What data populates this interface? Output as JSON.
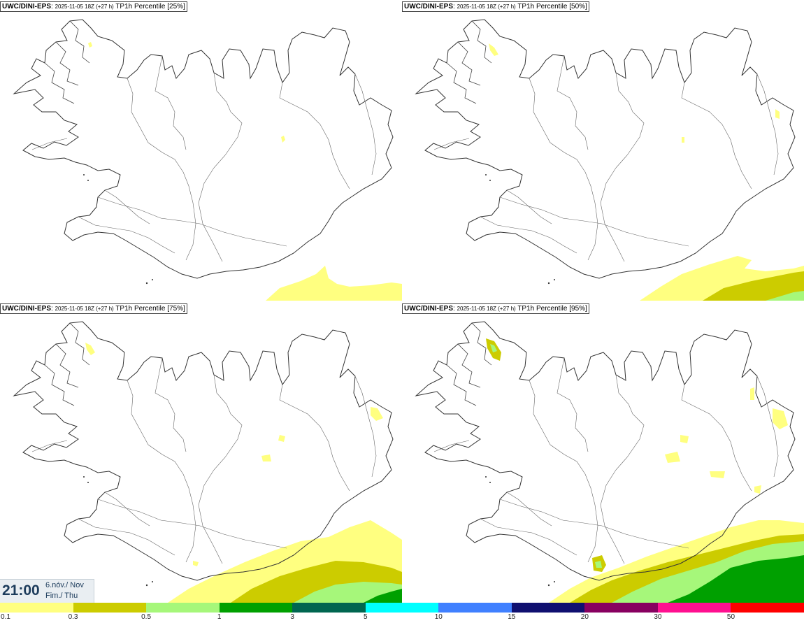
{
  "panels": [
    {
      "model": "UWC/DINI-EPS",
      "run": "2025-11-05 18Z (+27 h)",
      "label": "TP1h Percentile [25%]"
    },
    {
      "model": "UWC/DINI-EPS",
      "run": "2025-11-05 18Z (+27 h)",
      "label": "TP1h Percentile [50%]"
    },
    {
      "model": "UWC/DINI-EPS",
      "run": "2025-11-05 18Z (+27 h)",
      "label": "TP1h Percentile [75%]"
    },
    {
      "model": "UWC/DINI-EPS",
      "run": "2025-11-05 18Z (+27 h)",
      "label": "TP1h Percentile [95%]"
    }
  ],
  "valid_time": {
    "time": "21:00",
    "date_line1": "6.nóv./ Nov",
    "date_line2": "Fim./ Thu"
  },
  "legend": {
    "colors": [
      "#ffff80",
      "#cccc00",
      "#a6f77a",
      "#00a000",
      "#006650",
      "#00ffff",
      "#4080ff",
      "#101070",
      "#880060",
      "#ff1090",
      "#ff0000"
    ],
    "ticks": [
      "0.1",
      "0.3",
      "0.5",
      "1",
      "3",
      "5",
      "10",
      "15",
      "20",
      "30",
      "50"
    ]
  }
}
